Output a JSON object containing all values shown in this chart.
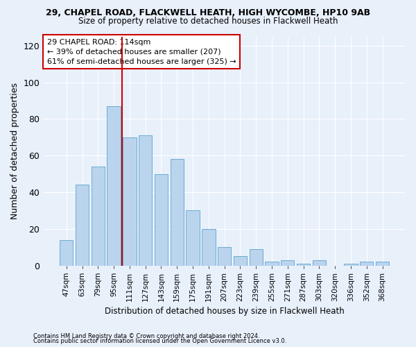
{
  "title1": "29, CHAPEL ROAD, FLACKWELL HEATH, HIGH WYCOMBE, HP10 9AB",
  "title2": "Size of property relative to detached houses in Flackwell Heath",
  "xlabel": "Distribution of detached houses by size in Flackwell Heath",
  "ylabel": "Number of detached properties",
  "categories": [
    "47sqm",
    "63sqm",
    "79sqm",
    "95sqm",
    "111sqm",
    "127sqm",
    "143sqm",
    "159sqm",
    "175sqm",
    "191sqm",
    "207sqm",
    "223sqm",
    "239sqm",
    "255sqm",
    "271sqm",
    "287sqm",
    "303sqm",
    "320sqm",
    "336sqm",
    "352sqm",
    "368sqm"
  ],
  "values": [
    14,
    44,
    54,
    87,
    70,
    71,
    50,
    58,
    30,
    20,
    10,
    5,
    9,
    2,
    3,
    1,
    3,
    0,
    1,
    2,
    2
  ],
  "bar_color": "#bad4ee",
  "bar_edge_color": "#6aacd4",
  "bg_color": "#e8f0fa",
  "grid_color": "#ffffff",
  "vline_index": 3.5,
  "vline_color": "#cc0000",
  "annotation_text": "29 CHAPEL ROAD: 114sqm\n← 39% of detached houses are smaller (207)\n61% of semi-detached houses are larger (325) →",
  "annotation_box_color": "white",
  "annotation_box_edge": "#cc0000",
  "ylim": [
    0,
    125
  ],
  "yticks": [
    0,
    20,
    40,
    60,
    80,
    100,
    120
  ],
  "footnote1": "Contains HM Land Registry data © Crown copyright and database right 2024.",
  "footnote2": "Contains public sector information licensed under the Open Government Licence v3.0."
}
